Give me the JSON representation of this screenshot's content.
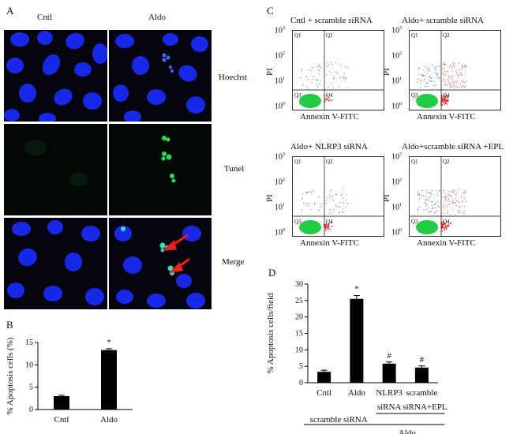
{
  "panel_a": {
    "letter": "A",
    "col_headers": [
      "Cntl",
      "Aldo"
    ],
    "row_labels": [
      "Hoechst",
      "Tunel",
      "Merge"
    ],
    "colors": {
      "nuclei": "#1a2cff",
      "tunel": "#22dd55",
      "merge_highlight": "#33e0c0",
      "arrow": "#e8201e",
      "background": "#050510"
    }
  },
  "panel_b": {
    "letter": "B",
    "chart_data": {
      "type": "bar",
      "categories": [
        "Cntl",
        "Aldo"
      ],
      "values": [
        3.0,
        13.3
      ],
      "errors": [
        0.2,
        0.3
      ],
      "annotations": [
        "",
        "*"
      ],
      "ylabel": "% Apoptosis cells (%)",
      "ylim": [
        0,
        15
      ],
      "yticks": [
        0,
        5,
        10,
        15
      ],
      "grid": false
    }
  },
  "panel_c": {
    "letter": "C",
    "plots": [
      {
        "title": "Cntl + scramble siRNA",
        "quadrants": [
          "Q1",
          "Q2",
          "Q3",
          "Q4"
        ],
        "xlabel": "Annexin V-FITC",
        "ylabel": "PI"
      },
      {
        "title": "Aldo+ scramble siRNA",
        "quadrants": [
          "Q1",
          "Q2",
          "Q3",
          "Q4"
        ],
        "xlabel": "Annexin V-FITC",
        "ylabel": "PI"
      },
      {
        "title": "Aldo+ NLRP3 siRNA",
        "quadrants": [
          "Q1",
          "Q2",
          "Q3",
          "Q4"
        ],
        "xlabel": "Annexin V-FITC",
        "ylabel": "PI"
      },
      {
        "title": "Aldo+scramble siRNA +EPL",
        "quadrants": [
          "Q1",
          "Q2",
          "Q3",
          "Q4"
        ],
        "xlabel": "Annexin V-FITC",
        "ylabel": "PI"
      }
    ],
    "y_ticks": [
      "10",
      "10",
      "10",
      "10"
    ],
    "y_tick_exps": [
      "3",
      "2",
      "1",
      "0"
    ],
    "colors": {
      "q3_dots": "#22cc44",
      "q4_dots": "#ee2222",
      "q1_dots": "#4466dd",
      "q2_dots": "#ee5555"
    }
  },
  "panel_d": {
    "letter": "D",
    "chart_data": {
      "type": "bar",
      "categories": [
        "Cntl",
        "Aldo",
        "NLRP3",
        "scramble"
      ],
      "values": [
        3.3,
        25.5,
        5.8,
        4.6
      ],
      "errors": [
        0.5,
        1.0,
        0.5,
        0.5
      ],
      "annotations": [
        "",
        "*",
        "#",
        "#"
      ],
      "ylabel": "% Apoptosis cells/field",
      "ylim": [
        0,
        30
      ],
      "yticks": [
        0,
        5,
        10,
        15,
        20,
        25,
        30
      ],
      "grid": false
    },
    "sub_labels": {
      "nlrp3_sirna": "siRNA",
      "scramble_sirna_epl": "siRNA+EPL",
      "scramble_sirna": "scramble siRNA",
      "aldo": "Aldo"
    }
  }
}
